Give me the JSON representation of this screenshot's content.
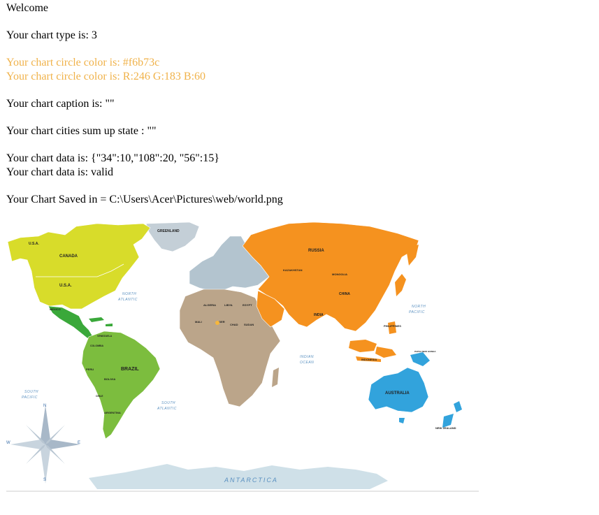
{
  "lines": {
    "welcome": "Welcome",
    "chart_type": "Your chart type is: 3",
    "circle_color_hex": "Your chart circle color is: #f6b73c",
    "circle_color_rgb": "Your chart circle color is: R:246 G:183 B:60",
    "caption": "Your chart caption is: \"\"",
    "cities_state": "Your chart cities sum up state : \"\"",
    "data_raw": "Your chart data is: {\"34\":10,\"108\":20, \"56\":15}",
    "data_valid": "Your chart data is: valid",
    "saved_path": "Your Chart Saved in = C:\\Users\\Acer\\Pictures\\web/world.png"
  },
  "colors": {
    "circle": "#f6b73c",
    "north_america": "#d8dc2a",
    "central_america": "#3aa83a",
    "south_america": "#7cbd3e",
    "europe": "#b3c4cf",
    "greenland": "#c4cfd7",
    "africa": "#bba58a",
    "asia": "#f5921f",
    "australia": "#32a3dc",
    "antarctica": "#cfe0e8"
  },
  "map": {
    "labels": {
      "usa_alaska": "U.S.A.",
      "canada": "CANADA",
      "usa": "U.S.A.",
      "mexico": "MEXICO",
      "greenland": "GREENLAND",
      "russia": "RUSSIA",
      "kazakhstan": "KAZAKHSTAN",
      "mongolia": "MONGOLIA",
      "china": "CHINA",
      "india": "INDIA",
      "philippines": "PHILIPPINES",
      "indonesia": "INDONESIA",
      "papua": "PAPUA NEW GUINEA",
      "australia": "AUSTRALIA",
      "new_zealand": "NEW ZEALAND",
      "brazil": "BRAZIL",
      "peru": "PERU",
      "bolivia": "BOLIVIA",
      "colombia": "COLOMBIA",
      "venezuela": "VENEZUELA",
      "argentina": "ARGENTINA",
      "chile": "CHILE",
      "algeria": "ALGERIA",
      "libya": "LIBYA",
      "egypt": "EGYPT",
      "niger": "NIGER",
      "chad": "CHAD",
      "sudan": "SUDAN",
      "mali": "MALI",
      "north_atlantic_1": "NORTH",
      "north_atlantic_2": "ATLANTIC",
      "south_atlantic_1": "SOUTH",
      "south_atlantic_2": "ATLANTIC",
      "north_pacific_1": "NORTH",
      "north_pacific_2": "PACIFIC",
      "south_pacific_1": "SOUTH",
      "south_pacific_2": "PACIFIC",
      "indian_ocean_1": "INDIAN",
      "indian_ocean_2": "OCEAN",
      "antarctica": "ANTARCTICA",
      "compass_n": "N",
      "compass_s": "S",
      "compass_e": "E",
      "compass_w": "W"
    }
  }
}
